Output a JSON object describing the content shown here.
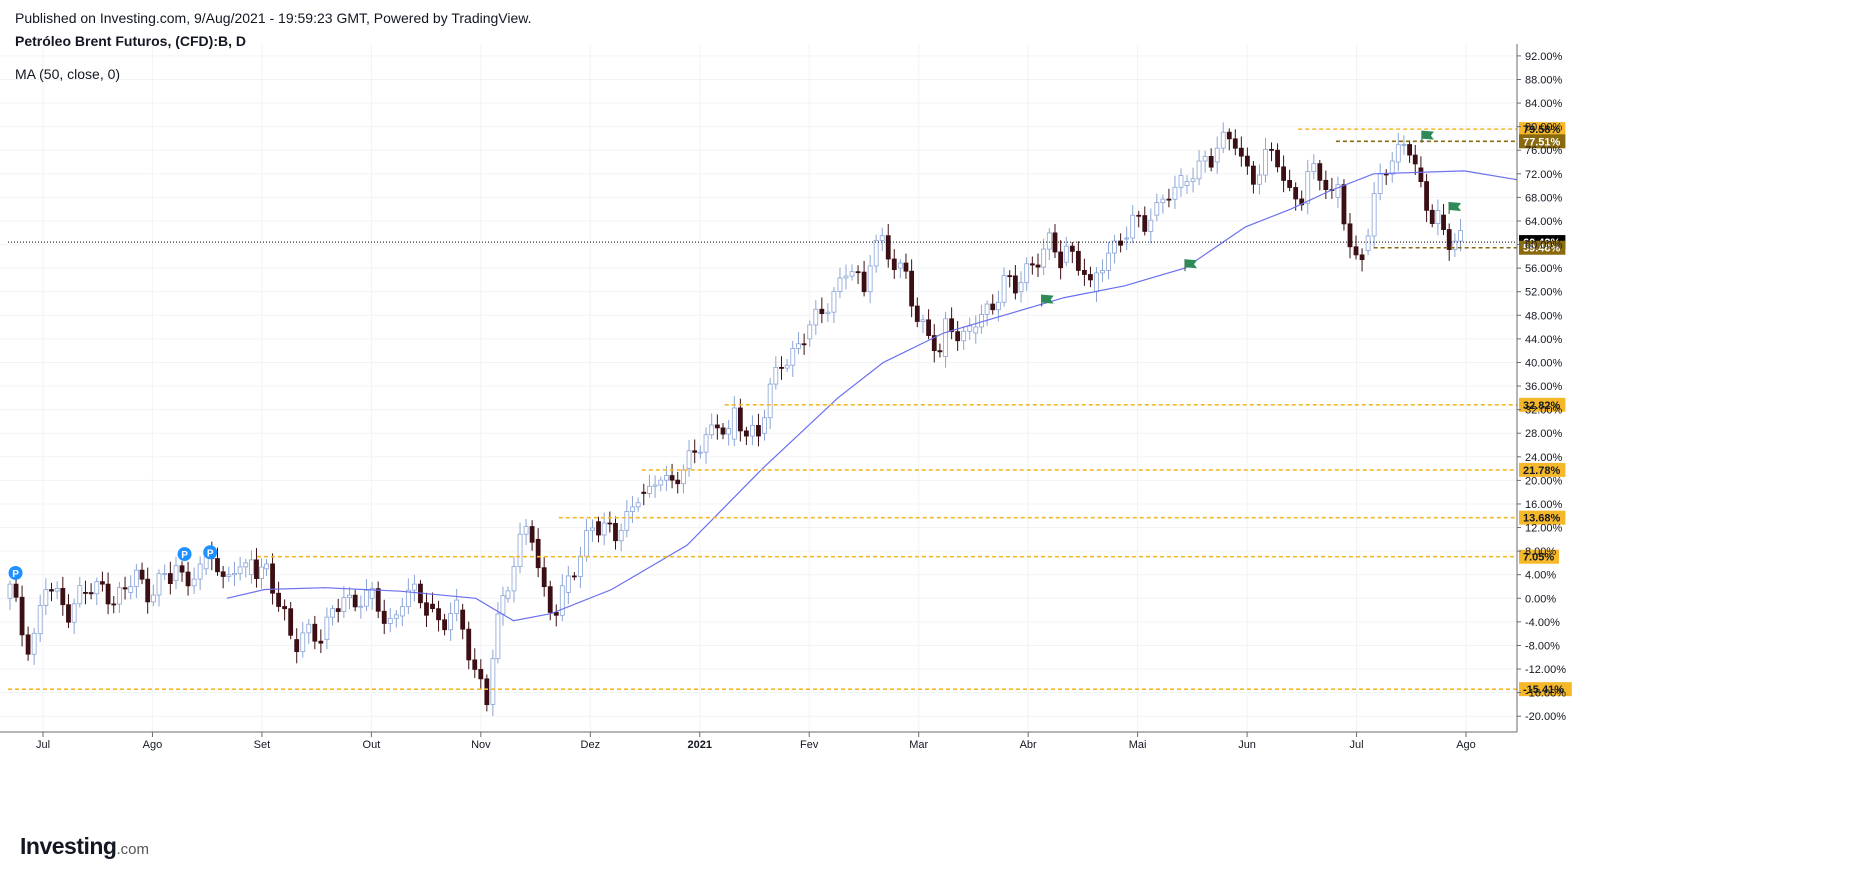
{
  "header": {
    "published": "Published on Investing.com, 9/Aug/2021 - 19:59:23 GMT, Powered by TradingView.",
    "title": "Petróleo Brent Futuros, (CFD):B, D",
    "study": "MA (50, close, 0)"
  },
  "logo": {
    "main": "Investing",
    "suffix": ".com"
  },
  "colors": {
    "up": "#ffffff",
    "down": "#3b0f14",
    "ma": "#6a6ff0",
    "level": "#f5b82b",
    "level_dark": "#8a6a0e",
    "current": "#000000",
    "flag": "#2e8b57",
    "marker": "#1e90ff"
  },
  "chart_data": {
    "type": "candlestick",
    "ylim": [
      -22,
      93
    ],
    "yticks": [
      92,
      88,
      84,
      80,
      76,
      72,
      68,
      64,
      60,
      56,
      52,
      48,
      44,
      40,
      36,
      32,
      28,
      24,
      20,
      16,
      12,
      8,
      4,
      0,
      -4,
      -8,
      -12,
      -16,
      -20
    ],
    "ytick_format": "0.00%",
    "x_months": [
      "Jul",
      "Ago",
      "Set",
      "Out",
      "Nov",
      "Dez",
      "2021",
      "Fev",
      "Mar",
      "Abr",
      "Mai",
      "Jun",
      "Jul",
      "Ago"
    ],
    "ma_label": "MA (50, close, 0)",
    "ma_series": [
      [
        0.145,
        0
      ],
      [
        0.17,
        1.5
      ],
      [
        0.21,
        1.8
      ],
      [
        0.26,
        1.2
      ],
      [
        0.31,
        0
      ],
      [
        0.335,
        -3.8
      ],
      [
        0.36,
        -2.6
      ],
      [
        0.4,
        1.5
      ],
      [
        0.45,
        9
      ],
      [
        0.5,
        22
      ],
      [
        0.55,
        34
      ],
      [
        0.58,
        40
      ],
      [
        0.62,
        45
      ],
      [
        0.66,
        48
      ],
      [
        0.7,
        51
      ],
      [
        0.74,
        53
      ],
      [
        0.78,
        56
      ],
      [
        0.82,
        63
      ],
      [
        0.85,
        66
      ],
      [
        0.875,
        69
      ],
      [
        0.905,
        72
      ],
      [
        0.965,
        72.5
      ],
      [
        1.0,
        71
      ]
    ],
    "candles_ohlc_segments": [
      [
        0.0,
        0,
        2,
        -4,
        -8,
        -6
      ],
      [
        0.02,
        -6,
        2,
        0,
        -2,
        1
      ],
      [
        0.05,
        1,
        1,
        2,
        0,
        1
      ],
      [
        0.08,
        1,
        4,
        1,
        3,
        3
      ],
      [
        0.11,
        3,
        6,
        2,
        5,
        5
      ],
      [
        0.13,
        5,
        7,
        3,
        6,
        4
      ],
      [
        0.16,
        4,
        8,
        3,
        5,
        5
      ],
      [
        0.17,
        5,
        6,
        0,
        -3,
        -7
      ],
      [
        0.19,
        -7,
        -8,
        -4,
        -6,
        -7
      ],
      [
        0.21,
        -7,
        -3,
        1,
        -1,
        0
      ],
      [
        0.24,
        0,
        0,
        -2,
        -4,
        -3
      ],
      [
        0.26,
        -3,
        0,
        1,
        0,
        -1
      ],
      [
        0.28,
        -1,
        -2,
        -6,
        -3,
        -2
      ],
      [
        0.3,
        -2,
        -6,
        -10,
        -14,
        -18
      ],
      [
        0.32,
        -18,
        -12,
        -6,
        -3,
        0
      ],
      [
        0.33,
        0,
        4,
        8,
        12,
        10
      ],
      [
        0.35,
        10,
        3,
        0,
        -2,
        1
      ],
      [
        0.37,
        1,
        3,
        5,
        10,
        13
      ],
      [
        0.39,
        13,
        12,
        10,
        14,
        18
      ],
      [
        0.42,
        18,
        17,
        21,
        20,
        22
      ],
      [
        0.45,
        22,
        24,
        28,
        30,
        27
      ],
      [
        0.48,
        27,
        32,
        28,
        29,
        28
      ],
      [
        0.5,
        28,
        35,
        40,
        42,
        44
      ],
      [
        0.53,
        44,
        48,
        52,
        56,
        52
      ],
      [
        0.57,
        52,
        60,
        62,
        58,
        56
      ],
      [
        0.59,
        56,
        55,
        48,
        44,
        41
      ],
      [
        0.62,
        41,
        48,
        46,
        44,
        45
      ],
      [
        0.64,
        45,
        48,
        50,
        54,
        52
      ],
      [
        0.67,
        52,
        56,
        58,
        60,
        57
      ],
      [
        0.7,
        57,
        60,
        58,
        56,
        52
      ],
      [
        0.72,
        52,
        55,
        58,
        60,
        61
      ],
      [
        0.74,
        61,
        62,
        64,
        63,
        65
      ],
      [
        0.76,
        65,
        67,
        69,
        68,
        70
      ],
      [
        0.78,
        70,
        72,
        73,
        75,
        74
      ],
      [
        0.8,
        74,
        76,
        78,
        79,
        75
      ],
      [
        0.82,
        75,
        72,
        70,
        74,
        76
      ],
      [
        0.84,
        76,
        75,
        69,
        68,
        67
      ],
      [
        0.86,
        67,
        72,
        74,
        71,
        68
      ],
      [
        0.88,
        68,
        70,
        60,
        57,
        59
      ],
      [
        0.9,
        59,
        64,
        70,
        72,
        74
      ],
      [
        0.92,
        74,
        76,
        78,
        77,
        73
      ],
      [
        0.935,
        73,
        69,
        66,
        64,
        65
      ],
      [
        0.95,
        65,
        63,
        61,
        60.4,
        60.4
      ]
    ],
    "horizontal_levels": [
      {
        "value": 79.58,
        "label": "79.58%",
        "style": "dashed",
        "x_start": 0.855,
        "color": "level"
      },
      {
        "value": 77.51,
        "label": "77.51%",
        "style": "dashed",
        "x_start": 0.88,
        "color": "level_dark"
      },
      {
        "value": 60.42,
        "label": "60.42%",
        "style": "dotted",
        "x_start": 0.0,
        "color": "current"
      },
      {
        "value": 59.46,
        "label": "59.46%",
        "style": "dashed",
        "x_start": 0.905,
        "color": "level_dark"
      },
      {
        "value": 32.82,
        "label": "32.82%",
        "style": "dashed",
        "x_start": 0.475,
        "color": "level"
      },
      {
        "value": 21.78,
        "label": "21.78%",
        "style": "dashed",
        "x_start": 0.42,
        "color": "level"
      },
      {
        "value": 13.68,
        "label": "13.68%",
        "style": "dashed",
        "x_start": 0.365,
        "color": "level"
      },
      {
        "value": 7.05,
        "label": "7.05%",
        "style": "dashed",
        "x_start": 0.165,
        "color": "level"
      },
      {
        "value": -15.41,
        "label": "-15.41%",
        "style": "dashed",
        "x_start": 0.0,
        "color": "level"
      }
    ],
    "markers": [
      {
        "label": "P",
        "x": 0.005,
        "y": 4.3
      },
      {
        "label": "P",
        "x": 0.117,
        "y": 7.5
      },
      {
        "label": "P",
        "x": 0.134,
        "y": 7.8
      }
    ],
    "flags": [
      {
        "x": 0.685,
        "y": 50.5
      },
      {
        "x": 0.78,
        "y": 56.5
      },
      {
        "x": 0.937,
        "y": 78.3
      },
      {
        "x": 0.955,
        "y": 66.2
      }
    ]
  }
}
